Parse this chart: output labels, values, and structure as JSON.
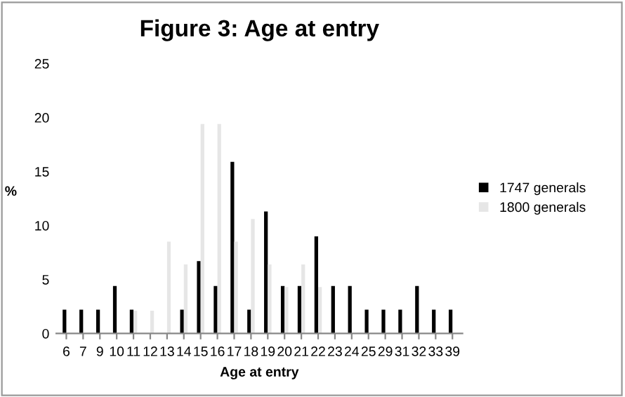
{
  "chart_data": {
    "type": "bar",
    "title": "Figure 3: Age at entry",
    "xlabel": "Age at entry",
    "ylabel": "%",
    "categories": [
      "6",
      "7",
      "9",
      "10",
      "11",
      "12",
      "13",
      "14",
      "15",
      "16",
      "17",
      "18",
      "19",
      "20",
      "21",
      "22",
      "23",
      "24",
      "25",
      "29",
      "31",
      "32",
      "33",
      "39"
    ],
    "series": [
      {
        "name": "1747 generals",
        "color": "#000000",
        "values": [
          2.2,
          2.2,
          2.2,
          4.4,
          2.2,
          0,
          0,
          2.2,
          6.7,
          4.4,
          15.9,
          2.2,
          11.3,
          4.4,
          4.4,
          9,
          4.4,
          4.4,
          2.2,
          2.2,
          2.2,
          4.4,
          2.2,
          2.2
        ]
      },
      {
        "name": "1800 generals",
        "color": "#e6e6e6",
        "values": [
          0,
          0,
          0,
          0,
          2.1,
          2.1,
          8.5,
          6.4,
          19.4,
          19.4,
          8.5,
          10.6,
          6.4,
          4.3,
          6.4,
          4.3,
          0,
          0,
          0,
          0,
          0,
          0,
          0,
          0
        ]
      }
    ],
    "ylim": [
      0,
      25
    ],
    "yticks": [
      0,
      5,
      10,
      15,
      20,
      25
    ],
    "grid": false,
    "legend": "right"
  }
}
